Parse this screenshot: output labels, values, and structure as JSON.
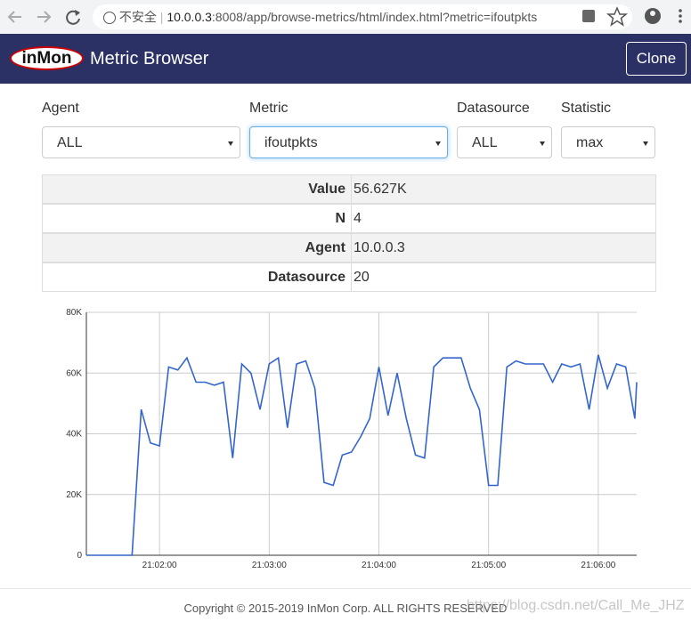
{
  "browser": {
    "security": "不安全",
    "url_host": "10.0.0.3",
    "url_rest": ":8008/app/browse-metrics/html/index.html?metric=ifoutpkts"
  },
  "navbar": {
    "logo": "inMon",
    "title": "Metric Browser",
    "button": "Clone"
  },
  "form": {
    "fields": [
      {
        "label": "Agent",
        "value": "ALL"
      },
      {
        "label": "Metric",
        "value": "ifoutpkts"
      },
      {
        "label": "Datasource",
        "value": "ALL"
      },
      {
        "label": "Statistic",
        "value": "max"
      }
    ]
  },
  "table": {
    "rows": [
      [
        "Value",
        "56.627K"
      ],
      [
        "N",
        "4"
      ],
      [
        "Agent",
        "10.0.0.3"
      ],
      [
        "Datasource",
        "20"
      ]
    ]
  },
  "chart": {
    "type": "line",
    "color": "#3366cc",
    "grid": true,
    "x": [
      "21:01:20",
      "21:01:25",
      "21:01:30",
      "21:01:35",
      "21:01:40",
      "21:01:45",
      "21:01:50",
      "21:01:55",
      "21:02:00",
      "21:02:05",
      "21:02:10",
      "21:02:15",
      "21:02:20",
      "21:02:25",
      "21:02:30",
      "21:02:35",
      "21:02:40",
      "21:02:45",
      "21:02:50",
      "21:02:55",
      "21:03:00",
      "21:03:05",
      "21:03:10",
      "21:03:15",
      "21:03:20",
      "21:03:25",
      "21:03:30",
      "21:03:35",
      "21:03:40",
      "21:03:45",
      "21:03:50",
      "21:03:55",
      "21:04:00",
      "21:04:05",
      "21:04:10",
      "21:04:15",
      "21:04:20",
      "21:04:25",
      "21:04:30",
      "21:04:35",
      "21:04:40",
      "21:04:45",
      "21:04:50",
      "21:04:55",
      "21:05:00",
      "21:05:05",
      "21:05:10",
      "21:05:15",
      "21:05:20",
      "21:05:25",
      "21:05:30",
      "21:05:35",
      "21:05:40",
      "21:05:45",
      "21:05:50",
      "21:05:55",
      "21:06:00",
      "21:06:05",
      "21:06:10",
      "21:06:15",
      "21:06:20",
      "21:06:21"
    ],
    "values": [
      0,
      0,
      0,
      0,
      0,
      0,
      48000,
      37000,
      36000,
      62000,
      61000,
      65000,
      57000,
      57000,
      56000,
      57000,
      32000,
      63000,
      60000,
      48000,
      63000,
      65000,
      42000,
      63000,
      64000,
      55000,
      24000,
      23000,
      33000,
      34000,
      39000,
      45000,
      62000,
      46000,
      60000,
      45000,
      33000,
      32000,
      62000,
      65000,
      65000,
      65000,
      55000,
      48000,
      23000,
      23000,
      62000,
      64000,
      63000,
      63000,
      63000,
      57000,
      63000,
      62000,
      63000,
      48000,
      66000,
      55000,
      63000,
      62000,
      45000,
      57000
    ],
    "xlim": [
      "21:01:20",
      "21:06:21"
    ],
    "xticks": [
      "21:02:00",
      "21:03:00",
      "21:04:00",
      "21:05:00",
      "21:06:00"
    ],
    "ylim": [
      0,
      80000
    ],
    "yticks": [
      0,
      {
        "value": 20000,
        "label": "20K"
      },
      {
        "value": 40000,
        "label": "40K"
      },
      {
        "value": 60000,
        "label": "60K"
      },
      {
        "value": 80000,
        "label": "80K"
      }
    ]
  },
  "footer": {
    "copyright": "Copyright © 2015-2019 InMon Corp. ALL RIGHTS RESERVED",
    "watermark": "https://blog.csdn.net/Call_Me_JHZ"
  }
}
